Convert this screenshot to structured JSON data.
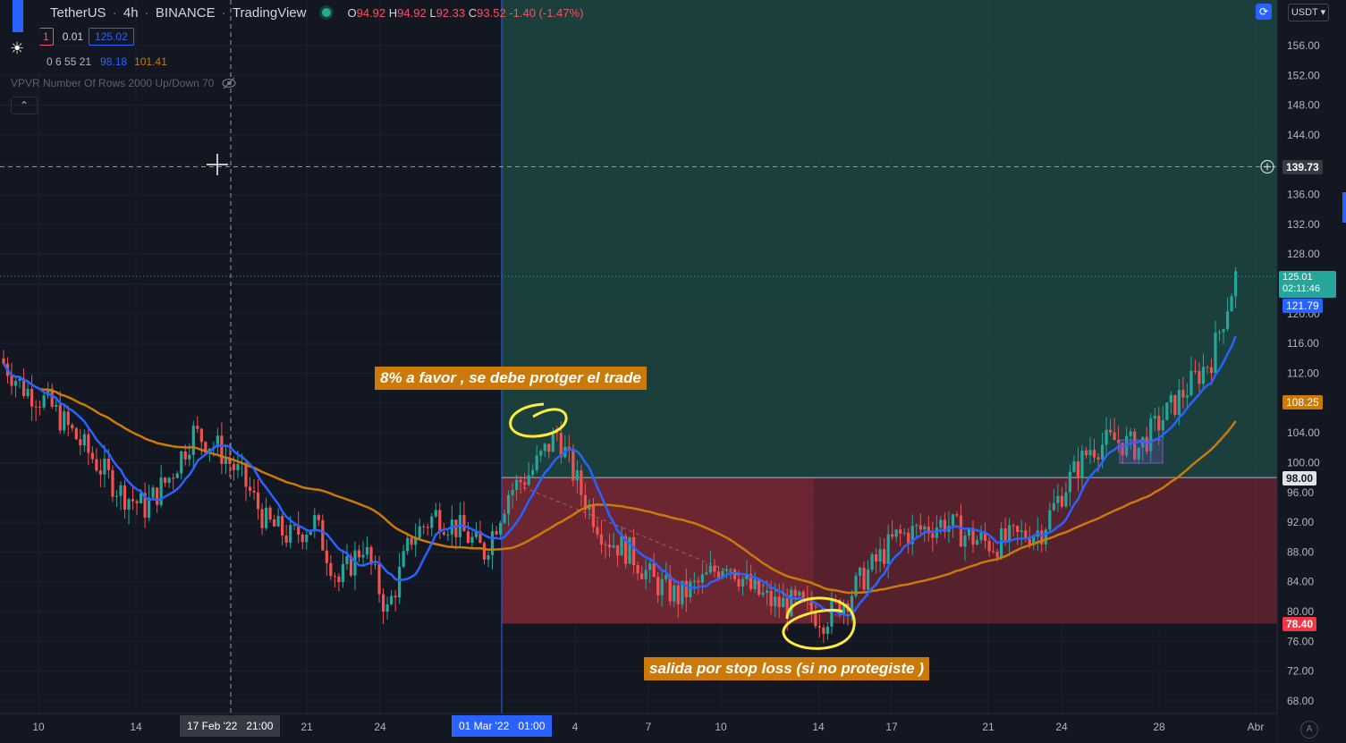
{
  "header": {
    "symbol": "TetherUS",
    "interval": "4h",
    "exchange": "BINANCE",
    "source": "TradingView",
    "ohlc": {
      "o_label": "O",
      "o": "94.92",
      "h_label": "H",
      "h": "94.92",
      "l_label": "L",
      "l": "92.33",
      "c_label": "C",
      "c": "93.52",
      "change": "-1.40 (-1.47%)"
    }
  },
  "indicators": {
    "row1": {
      "value1": "1",
      "value2": "0.01",
      "value3": "125.02"
    },
    "row2": {
      "params": "0 6 55 21",
      "ma_fast": "98.18",
      "ma_slow": "101.41"
    },
    "vpvr": "VPVR Number Of Rows 2000 Up/Down 70"
  },
  "currency_button": "USDT",
  "auto_button": "A",
  "annotations": {
    "top": "8% a favor , se debe protger el trade",
    "bottom": "salida por stop loss (si no protegiste )"
  },
  "price_tags": {
    "crosshair": "139.73",
    "current": "125.01",
    "countdown": "02:11:46",
    "ma_fast": "121.79",
    "ma_slow": "108.25",
    "entry": "98.00",
    "stop": "78.40"
  },
  "x_axis": {
    "ticks": [
      "10",
      "14",
      "21",
      "24",
      "4",
      "7",
      "10",
      "14",
      "17",
      "21",
      "24",
      "28",
      "Abr"
    ],
    "crosshair_date": "17 Feb '22",
    "crosshair_time": "21:00",
    "entry_date": "01 Mar '22",
    "entry_time": "01:00"
  },
  "colors": {
    "up": "#26a69a",
    "down": "#ef5350",
    "ma_fast": "#2962ff",
    "ma_slow": "#cb7a0a",
    "profit_zone": "#1e4d46",
    "loss_zone": "#6b2530",
    "annotation": "#cb7a0a",
    "circle": "#ffeb3b"
  },
  "chart_data": {
    "type": "candlestick",
    "title": "TetherUS 4h BINANCE",
    "y_range": [
      66,
      160
    ],
    "y_ticks": [
      68,
      72,
      76,
      80,
      84,
      88,
      92,
      96,
      100,
      104,
      108,
      112,
      116,
      120,
      124,
      128,
      132,
      136,
      140,
      144,
      148,
      152,
      156
    ],
    "close_path": [
      [
        "Feb 8",
        114
      ],
      [
        "Feb 9",
        110
      ],
      [
        "Feb 10",
        108
      ],
      [
        "Feb 11",
        104
      ],
      [
        "Feb 12",
        100
      ],
      [
        "Feb 13",
        96
      ],
      [
        "Feb 14",
        94
      ],
      [
        "Feb 15",
        98
      ],
      [
        "Feb 16",
        104
      ],
      [
        "Feb 17",
        102
      ],
      [
        "Feb 18",
        98
      ],
      [
        "Feb 19",
        92
      ],
      [
        "Feb 20",
        90
      ],
      [
        "Feb 21",
        92
      ],
      [
        "Feb 22",
        84
      ],
      [
        "Feb 23",
        89
      ],
      [
        "Feb 24",
        80
      ],
      [
        "Feb 25",
        90
      ],
      [
        "Feb 26",
        93
      ],
      [
        "Feb 27",
        91
      ],
      [
        "Feb 28",
        88
      ],
      [
        "Mar 1",
        96
      ],
      [
        "Mar 2",
        99
      ],
      [
        "Mar 3",
        104
      ],
      [
        "Mar 4",
        96
      ],
      [
        "Mar 5",
        90
      ],
      [
        "Mar 6",
        88
      ],
      [
        "Mar 7",
        84
      ],
      [
        "Mar 8",
        82
      ],
      [
        "Mar 9",
        84
      ],
      [
        "Mar 10",
        87
      ],
      [
        "Mar 11",
        83
      ],
      [
        "Mar 12",
        81
      ],
      [
        "Mar 13",
        81
      ],
      [
        "Mar 14",
        79
      ],
      [
        "Mar 15",
        82
      ],
      [
        "Mar 16",
        86
      ],
      [
        "Mar 17",
        90
      ],
      [
        "Mar 18",
        91
      ],
      [
        "Mar 19",
        92
      ],
      [
        "Mar 20",
        90
      ],
      [
        "Mar 21",
        89
      ],
      [
        "Mar 22",
        90
      ],
      [
        "Mar 23",
        91
      ],
      [
        "Mar 24",
        97
      ],
      [
        "Mar 25",
        102
      ],
      [
        "Mar 26",
        103
      ],
      [
        "Mar 27",
        102
      ],
      [
        "Mar 28",
        106
      ],
      [
        "Mar 29",
        110
      ],
      [
        "Mar 30",
        114
      ],
      [
        "Mar 31",
        125
      ]
    ],
    "trade": {
      "entry": 98.0,
      "stop": 78.4,
      "target": 139.73
    }
  }
}
